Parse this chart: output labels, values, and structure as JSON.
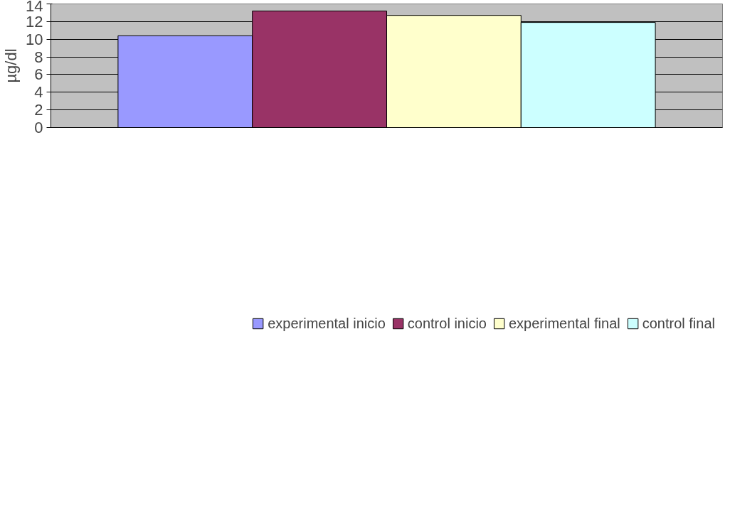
{
  "chart_data": {
    "type": "bar",
    "ylabel": "µg/dl",
    "categories": [
      null
    ],
    "series": [
      {
        "name": "experimental inicio",
        "color": "#9999ff",
        "values": [
          10.4
        ]
      },
      {
        "name": "control inicio",
        "color": "#993366",
        "values": [
          13.2
        ]
      },
      {
        "name": "experimental final",
        "color": "#ffffcc",
        "values": [
          12.7
        ]
      },
      {
        "name": "control final",
        "color": "#ccffff",
        "values": [
          11.9
        ]
      }
    ],
    "ylim": [
      0,
      14
    ],
    "yticks": [
      0,
      2,
      4,
      6,
      8,
      10,
      12,
      14
    ],
    "grid": "y",
    "legend": "bottom"
  }
}
